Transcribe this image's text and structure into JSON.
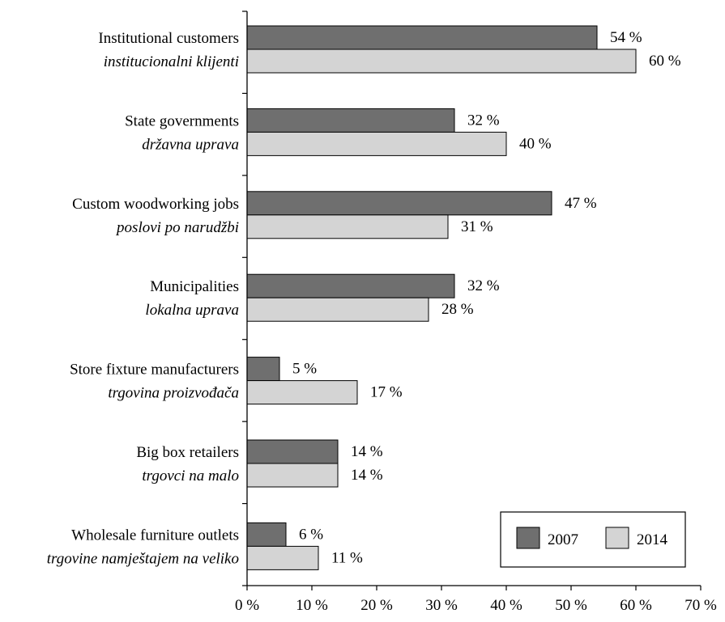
{
  "chart_data": {
    "type": "bar",
    "orientation": "horizontal",
    "categories": [
      {
        "en": "Institutional customers",
        "hr": "institucionalni klijenti"
      },
      {
        "en": "State governments",
        "hr": "državna uprava"
      },
      {
        "en": "Custom woodworking jobs",
        "hr": "poslovi po narudžbi"
      },
      {
        "en": "Municipalities",
        "hr": "lokalna uprava"
      },
      {
        "en": "Store fixture manufacturers",
        "hr": "trgovina proizvođača"
      },
      {
        "en": "Big box retailers",
        "hr": "trgovci na malo"
      },
      {
        "en": "Wholesale furniture outlets",
        "hr": "trgovine namještajem na veliko"
      }
    ],
    "series": [
      {
        "name": "2007",
        "color": "#6f6f6f",
        "values": [
          54,
          32,
          47,
          32,
          5,
          14,
          6
        ]
      },
      {
        "name": "2014",
        "color": "#d4d4d4",
        "values": [
          60,
          40,
          31,
          28,
          17,
          14,
          11
        ]
      }
    ],
    "value_suffix": " %",
    "xlim": [
      0,
      70
    ],
    "x_ticks": [
      0,
      10,
      20,
      30,
      40,
      50,
      60,
      70
    ],
    "x_tick_labels": [
      "0 %",
      "10 %",
      "20 %",
      "30 %",
      "40 %",
      "50 %",
      "60 %",
      "70 %"
    ],
    "grid": false,
    "legend": {
      "position": "bottom-right",
      "frame": true
    },
    "title": "",
    "xlabel": "",
    "ylabel": ""
  }
}
